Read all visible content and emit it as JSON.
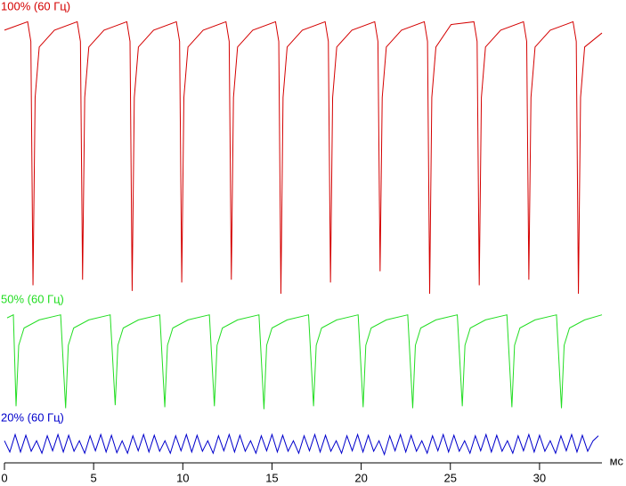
{
  "chart_data": [
    {
      "type": "line",
      "title": "100% (60 Гц)",
      "color": "#d40000",
      "ylim": [
        0,
        100
      ],
      "x": [
        0,
        1.3,
        1.48,
        1.6,
        1.72,
        1.95,
        2.8,
        4.08,
        4.26,
        4.38,
        4.5,
        4.73,
        5.58,
        6.86,
        7.04,
        7.16,
        7.28,
        7.51,
        8.36,
        9.64,
        9.82,
        9.94,
        10.06,
        10.29,
        11.14,
        12.42,
        12.6,
        12.72,
        12.84,
        13.07,
        13.92,
        15.2,
        15.38,
        15.5,
        15.62,
        15.85,
        16.7,
        17.98,
        18.16,
        18.28,
        18.4,
        18.63,
        19.48,
        20.76,
        20.94,
        21.06,
        21.18,
        21.41,
        22.26,
        23.54,
        23.72,
        23.84,
        23.96,
        24.19,
        25.04,
        26.32,
        26.5,
        26.62,
        26.74,
        26.97,
        27.82,
        29.1,
        29.28,
        29.4,
        29.52,
        29.75,
        30.6,
        31.88,
        32.06,
        32.18,
        32.3,
        32.53,
        33.5
      ],
      "values": [
        94,
        97,
        90,
        3,
        70,
        88,
        94,
        97,
        90,
        5,
        70,
        88,
        94,
        97,
        90,
        1,
        70,
        88,
        94,
        97,
        90,
        4,
        70,
        88,
        94,
        97,
        90,
        5,
        70,
        88,
        94,
        97,
        90,
        0,
        70,
        88,
        94,
        97,
        90,
        4,
        70,
        88,
        94,
        97,
        90,
        8,
        70,
        88,
        94,
        97,
        90,
        0,
        70,
        88,
        96,
        97,
        90,
        3,
        70,
        88,
        94,
        97,
        90,
        5,
        70,
        88,
        94,
        97,
        90,
        0,
        70,
        88,
        93
      ]
    },
    {
      "type": "line",
      "title": "50% (60 Гц)",
      "color": "#22dd22",
      "ylim": [
        0,
        100
      ],
      "x": [
        0.15,
        0.5,
        0.65,
        0.8,
        1.1,
        1.95,
        3.15,
        3.43,
        3.58,
        3.88,
        4.73,
        5.93,
        6.21,
        6.36,
        6.66,
        7.51,
        8.71,
        8.99,
        9.14,
        9.44,
        10.29,
        11.49,
        11.77,
        11.92,
        12.22,
        13.07,
        14.27,
        14.55,
        14.7,
        15,
        15.85,
        17.05,
        17.33,
        17.48,
        17.78,
        18.63,
        19.83,
        20.11,
        20.26,
        20.56,
        21.41,
        22.61,
        22.89,
        23.04,
        23.34,
        24.19,
        25.39,
        25.67,
        25.82,
        26.12,
        26.97,
        28.17,
        28.45,
        28.6,
        28.9,
        29.75,
        30.95,
        31.23,
        31.38,
        31.68,
        32.53,
        33.5
      ],
      "values": [
        92,
        95,
        5,
        65,
        82,
        90,
        95,
        3,
        65,
        82,
        90,
        95,
        6,
        65,
        82,
        90,
        95,
        4,
        65,
        82,
        90,
        95,
        5,
        65,
        82,
        90,
        95,
        2,
        65,
        82,
        90,
        95,
        5,
        65,
        82,
        90,
        95,
        4,
        65,
        82,
        90,
        95,
        3,
        65,
        82,
        90,
        95,
        5,
        65,
        82,
        90,
        95,
        4,
        65,
        82,
        90,
        95,
        3,
        65,
        82,
        90,
        95
      ]
    },
    {
      "type": "line",
      "title": "20% (60 Гц)",
      "color": "#0000cc",
      "ylim": [
        0,
        100
      ],
      "xlim": [
        0,
        33.5
      ],
      "xticks": [
        0,
        5,
        10,
        15,
        20,
        25,
        30
      ],
      "xlabel": "мс",
      "x": [
        0,
        0.3,
        0.6,
        0.9,
        1.2,
        1.5,
        1.8,
        2.1,
        2.4,
        2.7,
        3,
        3.3,
        3.6,
        3.9,
        4.2,
        4.5,
        4.8,
        5.1,
        5.4,
        5.7,
        6,
        6.3,
        6.6,
        6.9,
        7.2,
        7.5,
        7.8,
        8.1,
        8.4,
        8.7,
        9,
        9.3,
        9.6,
        9.9,
        10.2,
        10.5,
        10.8,
        11.1,
        11.4,
        11.7,
        12,
        12.3,
        12.6,
        12.9,
        13.2,
        13.5,
        13.8,
        14.1,
        14.4,
        14.7,
        15,
        15.3,
        15.6,
        15.9,
        16.2,
        16.5,
        16.8,
        17.1,
        17.4,
        17.7,
        18,
        18.3,
        18.6,
        18.9,
        19.2,
        19.5,
        19.8,
        20.1,
        20.4,
        20.7,
        21,
        21.3,
        21.6,
        21.9,
        22.2,
        22.5,
        22.8,
        23.1,
        23.4,
        23.7,
        24,
        24.3,
        24.6,
        24.9,
        25.2,
        25.5,
        25.8,
        26.1,
        26.4,
        26.7,
        27,
        27.3,
        27.6,
        27.9,
        28.2,
        28.5,
        28.8,
        29.1,
        29.4,
        29.7,
        30,
        30.3,
        30.6,
        30.9,
        31.2,
        31.5,
        31.8,
        32.1,
        32.4,
        32.7,
        33,
        33.3
      ],
      "values": [
        60,
        15,
        85,
        15,
        82,
        18,
        60,
        10,
        80,
        20,
        85,
        15,
        82,
        18,
        60,
        10,
        80,
        20,
        85,
        15,
        82,
        12,
        60,
        10,
        80,
        20,
        85,
        15,
        82,
        18,
        60,
        10,
        80,
        20,
        85,
        15,
        82,
        18,
        60,
        10,
        80,
        20,
        85,
        15,
        82,
        18,
        60,
        10,
        80,
        20,
        85,
        15,
        82,
        18,
        60,
        10,
        80,
        20,
        85,
        15,
        82,
        18,
        60,
        10,
        80,
        20,
        85,
        15,
        82,
        18,
        60,
        5,
        80,
        20,
        85,
        15,
        82,
        18,
        60,
        10,
        80,
        20,
        85,
        15,
        82,
        18,
        60,
        10,
        80,
        20,
        85,
        15,
        82,
        18,
        60,
        10,
        80,
        20,
        85,
        15,
        82,
        18,
        60,
        10,
        80,
        20,
        85,
        15,
        82,
        18,
        60,
        80
      ]
    }
  ]
}
